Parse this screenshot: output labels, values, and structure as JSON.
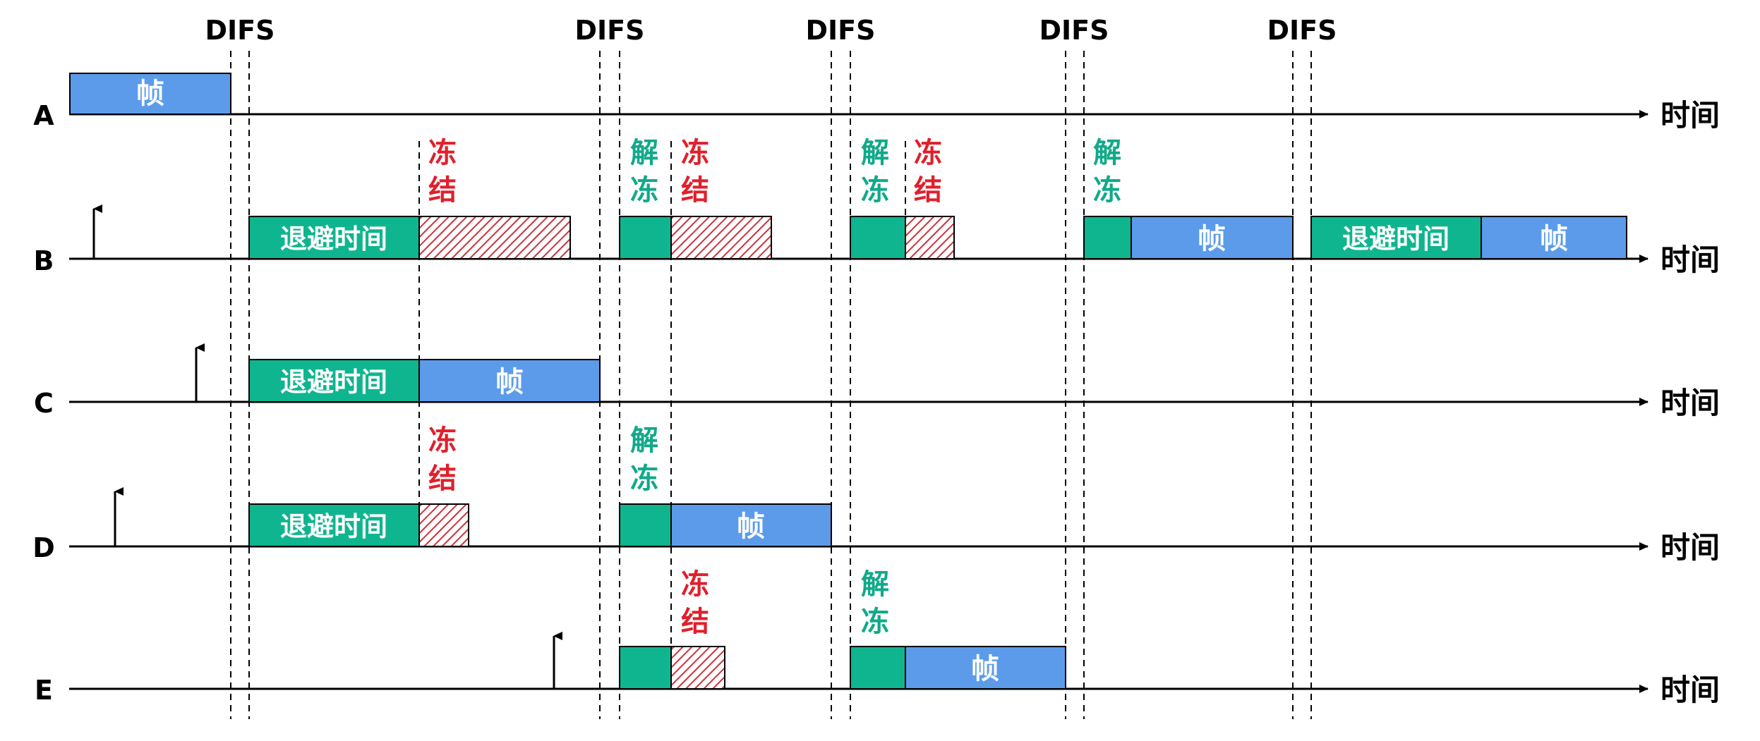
{
  "labels": {
    "difs": "DIFS",
    "time": "时间",
    "frame": "帧",
    "backoff": "退避时间",
    "freeze_1": "冻",
    "freeze_2": "结",
    "unfreeze_1": "解",
    "unfreeze_2": "冻"
  },
  "stations": [
    "A",
    "B",
    "C",
    "D",
    "E"
  ],
  "colors": {
    "frame": "#5b9bea",
    "backoff": "#0fb58f",
    "frozen": "#c8343d",
    "frozen_label": "#e0202c",
    "unfrozen_label": "#11a98a",
    "axis": "#000000"
  },
  "difs_count": 5,
  "events": {
    "A": [
      "frame"
    ],
    "B": [
      "arrival",
      "backoff",
      "freeze",
      "unfreeze",
      "freeze",
      "unfreeze",
      "freeze",
      "unfreeze",
      "frame",
      "backoff",
      "frame"
    ],
    "C": [
      "arrival",
      "backoff",
      "frame"
    ],
    "D": [
      "arrival",
      "backoff",
      "freeze",
      "unfreeze",
      "frame"
    ],
    "E": [
      "arrival",
      "unfreeze",
      "freeze",
      "unfreeze",
      "frame"
    ]
  }
}
